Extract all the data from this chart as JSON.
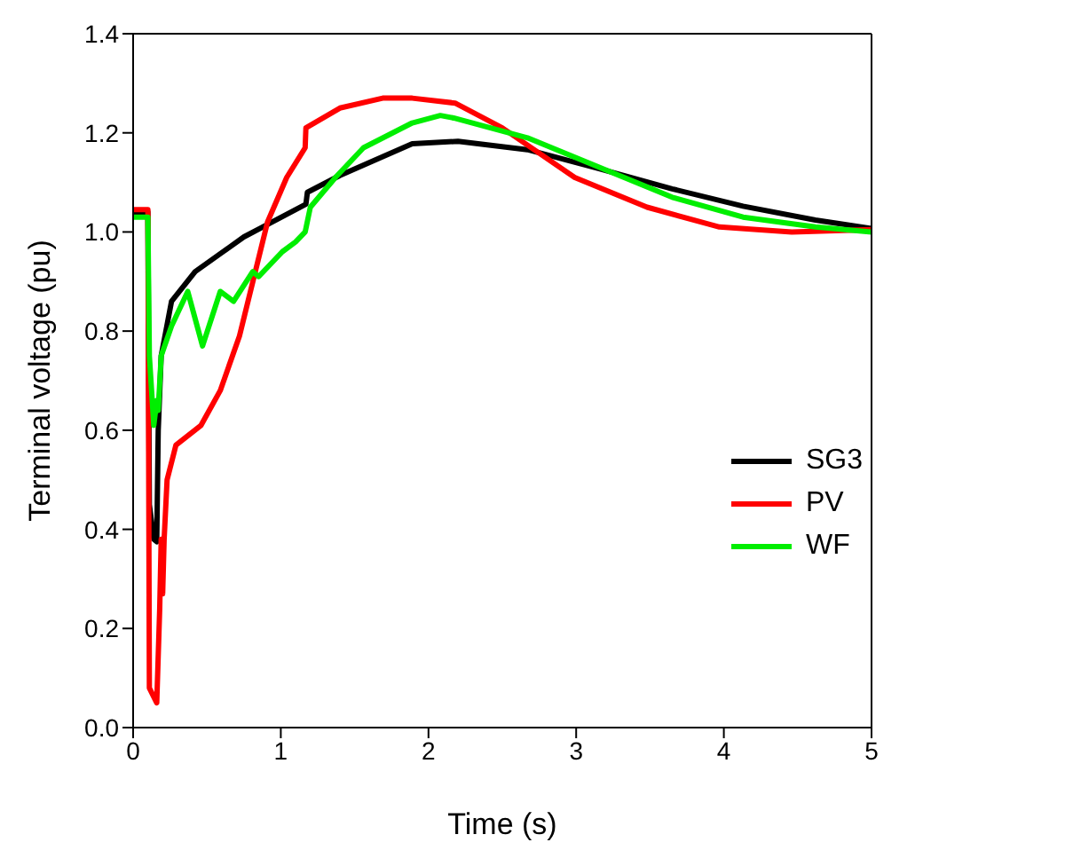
{
  "chart_data": {
    "type": "line",
    "xlabel": "Time (s)",
    "ylabel": "Terminal voltage (pu)",
    "xlim": [
      0,
      5
    ],
    "xticks": [
      0,
      1,
      2,
      3,
      4,
      5
    ],
    "ylim": [
      0,
      1.4
    ],
    "yticks": [
      {
        "value": 0,
        "label": "0.0"
      },
      0.2,
      0.4,
      0.6,
      0.8,
      {
        "value": 1,
        "label": "1.0"
      },
      1.2,
      1.4
    ],
    "legend": "right",
    "marker": "none",
    "line_style": "solid",
    "grid": false,
    "series": [
      {
        "name": "SG3",
        "color": "#000000",
        "x": [
          0,
          0.1,
          0.11,
          0.14,
          0.16,
          0.17,
          0.19,
          0.26,
          0.42,
          0.75,
          1.17,
          1.18,
          1.4,
          1.89,
          2.2,
          2.67,
          3.15,
          3.65,
          4.13,
          4.62,
          5
        ],
        "values": [
          1.04,
          1.04,
          0.45,
          0.38,
          0.375,
          0.6,
          0.75,
          0.86,
          0.92,
          0.99,
          1.056,
          1.08,
          1.114,
          1.178,
          1.183,
          1.166,
          1.128,
          1.087,
          1.052,
          1.024,
          1.007
        ]
      },
      {
        "name": "PV",
        "color": "#ff0000",
        "x": [
          0,
          0.1,
          0.11,
          0.16,
          0.18,
          0.19,
          0.2,
          0.21,
          0.23,
          0.29,
          0.46,
          0.59,
          0.72,
          0.91,
          1.04,
          1.165,
          1.17,
          1.4,
          1.69,
          1.89,
          2.18,
          2.5,
          2.99,
          3.48,
          3.97,
          4.46,
          5
        ],
        "values": [
          1.045,
          1.045,
          0.08,
          0.05,
          0.24,
          0.38,
          0.27,
          0.38,
          0.5,
          0.57,
          0.61,
          0.68,
          0.79,
          1.02,
          1.11,
          1.17,
          1.21,
          1.25,
          1.27,
          1.27,
          1.26,
          1.21,
          1.11,
          1.05,
          1.01,
          1.0,
          1.005
        ]
      },
      {
        "name": "WF",
        "color": "#00ee00",
        "x": [
          0,
          0.1,
          0.11,
          0.14,
          0.16,
          0.17,
          0.19,
          0.26,
          0.37,
          0.47,
          0.59,
          0.68,
          0.81,
          0.85,
          1.01,
          1.1,
          1.165,
          1.2,
          1.37,
          1.56,
          1.89,
          2.08,
          2.17,
          2.67,
          3.16,
          3.65,
          4.13,
          4.62,
          5
        ],
        "values": [
          1.03,
          1.03,
          0.75,
          0.61,
          0.66,
          0.64,
          0.75,
          0.81,
          0.88,
          0.77,
          0.88,
          0.86,
          0.92,
          0.91,
          0.96,
          0.98,
          1.0,
          1.05,
          1.11,
          1.17,
          1.22,
          1.235,
          1.23,
          1.19,
          1.13,
          1.07,
          1.03,
          1.01,
          1.0
        ]
      }
    ]
  }
}
